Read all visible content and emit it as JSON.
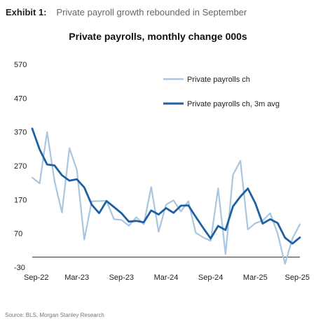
{
  "exhibit": {
    "label": "Exhibit 1:",
    "text": "Private payroll growth rebounded in September"
  },
  "source": "Source: BLS, Morgan Stanley Research",
  "chart_data": {
    "type": "line",
    "title": "Private payrolls, monthly change 000s",
    "xlabel": "",
    "ylabel": "",
    "ylim": [
      -30,
      570
    ],
    "yticks": [
      570,
      470,
      370,
      270,
      170,
      70,
      -30
    ],
    "xtick_labels": [
      "Sep-22",
      "Mar-23",
      "Sep-23",
      "Mar-24",
      "Sep-24",
      "Mar-25",
      "Sep-25"
    ],
    "x": [
      "Sep-22",
      "Oct-22",
      "Nov-22",
      "Dec-22",
      "Jan-23",
      "Feb-23",
      "Mar-23",
      "Apr-23",
      "May-23",
      "Jun-23",
      "Jul-23",
      "Aug-23",
      "Sep-23",
      "Oct-23",
      "Nov-23",
      "Dec-23",
      "Jan-24",
      "Feb-24",
      "Mar-24",
      "Apr-24",
      "May-24",
      "Jun-24",
      "Jul-24",
      "Aug-24",
      "Sep-24",
      "Oct-24",
      "Nov-24",
      "Dec-24",
      "Jan-25",
      "Feb-25",
      "Mar-25",
      "Apr-25",
      "May-25",
      "Jun-25",
      "Jul-25",
      "Aug-25",
      "Sep-25"
    ],
    "grid": false,
    "legend_position": "top-right",
    "series": [
      {
        "name": "Private payrolls ch",
        "color": "#a9c6e1",
        "values": [
          235,
          218,
          370,
          225,
          132,
          322,
          258,
          52,
          165,
          166,
          166,
          112,
          110,
          93,
          118,
          97,
          207,
          75,
          155,
          168,
          135,
          165,
          72,
          58,
          48,
          203,
          9,
          243,
          285,
          82,
          100,
          108,
          130,
          70,
          -20,
          55,
          97
        ]
      },
      {
        "name": "Private payrolls ch, 3m avg",
        "color": "#1f5fa3",
        "values": [
          380,
          318,
          274,
          271,
          242,
          226,
          230,
          206,
          155,
          130,
          166,
          148,
          130,
          105,
          107,
          103,
          138,
          126,
          145,
          131,
          152,
          153,
          119,
          86,
          55,
          92,
          80,
          150,
          179,
          203,
          160,
          99,
          112,
          101,
          57,
          40,
          58
        ]
      }
    ]
  }
}
